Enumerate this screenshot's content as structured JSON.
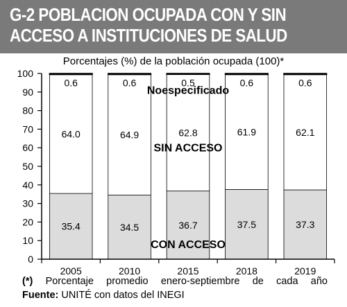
{
  "header": {
    "title": "G-2 POBLACION OCUPADA CON Y SIN ACCESO A INSTITUCIONES DE SALUD"
  },
  "colors": {
    "banner": "#7a7a7a",
    "con_acceso_fill": "#dcdcdc",
    "sin_acceso_fill": "#ffffff",
    "no_especificado_fill": "#000000"
  },
  "chart_data": {
    "type": "bar",
    "stacked": true,
    "title": "Porcentajes (%) de la población ocupada (100)*",
    "categories": [
      "2005",
      "2010",
      "2015",
      "2018",
      "2019"
    ],
    "series": [
      {
        "name": "CON  ACCESO",
        "values": [
          35.4,
          34.5,
          36.7,
          37.5,
          37.3
        ]
      },
      {
        "name": "SIN ACCESO",
        "values": [
          64.0,
          64.9,
          62.8,
          61.9,
          62.1
        ]
      },
      {
        "name": "Noespecificado",
        "values": [
          0.6,
          0.6,
          0.5,
          0.6,
          0.6
        ]
      }
    ],
    "ylim": [
      0,
      100
    ],
    "yticks": [
      0,
      10,
      20,
      30,
      40,
      50,
      60,
      70,
      80,
      90,
      100
    ],
    "grid": false,
    "legend": "inline labels"
  },
  "footer": {
    "note_mark": "(*)",
    "note_text": "Porcentaje promedio enero-septiembre de cada año",
    "source_label": "Fuente:",
    "source_text": "UNITÉ con datos del INEGI"
  }
}
